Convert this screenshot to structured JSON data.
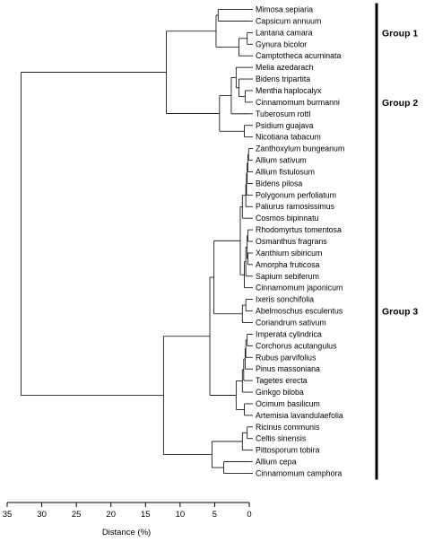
{
  "chart_data": {
    "type": "dendrogram",
    "xlabel": "Distance (%)",
    "x_ticks": [
      35,
      30,
      25,
      20,
      15,
      10,
      5,
      0
    ],
    "xlim": [
      35,
      0
    ],
    "leaves": [
      "Mimosa sepiaria",
      "Capsicum annuum",
      "Lantana camara",
      "Gynura bicolor",
      "Camptotheca acuminata",
      "Melia azedarach",
      "Bidens tripartita",
      "Mentha haplocalyx",
      "Cinnamomum burmanni",
      "Tuberosum rottl",
      "Psidium guajava",
      "Nicotiana tabacum",
      "Zanthoxylum bungeanum",
      "Allium sativum",
      "Allium fistulosum",
      "Bidens pilosa",
      "Polygonum perfoliatum",
      "Paliurus ramosissimus",
      "Cosmos bipinnatu",
      "Rhodomyrtus tomentosa",
      "Osmanthus fragrans",
      "Xanthium sibiricum",
      "Amorpha fruticosa",
      "Sapium sebiferum",
      "Cinnamomum japonicum",
      "Ixeris sonchifolia",
      "Abelmoschus esculentus",
      "Coriandrum sativum",
      "Imperata cylindrica",
      "Corchorus acutangulus",
      "Rubus parvifolius",
      "Pinus massoniana",
      "Tagetes erecta",
      "Ginkgo biloba",
      "Ocimum basilicum",
      "Artemisia lavandulaefolia",
      "Ricinus communis",
      "Celtis sinensis",
      "Pittosporum tobira",
      "Allium cepa",
      "Cinnamomum camphora"
    ],
    "merges": [
      {
        "a": 0,
        "b": 1,
        "height": 4.5
      },
      {
        "a": 2,
        "b": 3,
        "height": 0.3
      },
      {
        "a": 42,
        "b": 4,
        "height": 1.5
      },
      {
        "a": 41,
        "b": 43,
        "height": 4.8
      },
      {
        "a": 7,
        "b": 8,
        "height": 0.6
      },
      {
        "a": 6,
        "b": 45,
        "height": 1.5
      },
      {
        "a": 5,
        "b": 46,
        "height": 1.9
      },
      {
        "a": 10,
        "b": 11,
        "height": 0.7
      },
      {
        "a": 47,
        "b": 9,
        "height": 2.6
      },
      {
        "a": 49,
        "b": 48,
        "height": 4.3
      },
      {
        "a": 44,
        "b": 50,
        "height": 12.0
      },
      {
        "a": 12,
        "b": 13,
        "height": 0.1
      },
      {
        "a": 52,
        "b": 14,
        "height": 0.2
      },
      {
        "a": 53,
        "b": 15,
        "height": 0.3
      },
      {
        "a": 54,
        "b": 16,
        "height": 0.4
      },
      {
        "a": 55,
        "b": 17,
        "height": 0.5
      },
      {
        "a": 56,
        "b": 18,
        "height": 1.0
      },
      {
        "a": 19,
        "b": 20,
        "height": 0.2
      },
      {
        "a": 21,
        "b": 22,
        "height": 0.2
      },
      {
        "a": 58,
        "b": 59,
        "height": 0.3
      },
      {
        "a": 60,
        "b": 23,
        "height": 0.5
      },
      {
        "a": 61,
        "b": 24,
        "height": 0.7
      },
      {
        "a": 57,
        "b": 62,
        "height": 1.3
      },
      {
        "a": 25,
        "b": 26,
        "height": 0.5
      },
      {
        "a": 64,
        "b": 27,
        "height": 1.0
      },
      {
        "a": 63,
        "b": 65,
        "height": 5.1
      },
      {
        "a": 28,
        "b": 29,
        "height": 0.3
      },
      {
        "a": 67,
        "b": 30,
        "height": 0.5
      },
      {
        "a": 68,
        "b": 31,
        "height": 0.6
      },
      {
        "a": 69,
        "b": 32,
        "height": 0.8
      },
      {
        "a": 70,
        "b": 33,
        "height": 1.0
      },
      {
        "a": 34,
        "b": 35,
        "height": 0.7
      },
      {
        "a": 71,
        "b": 72,
        "height": 1.9
      },
      {
        "a": 66,
        "b": 73,
        "height": 5.7
      },
      {
        "a": 36,
        "b": 37,
        "height": 0.3
      },
      {
        "a": 75,
        "b": 38,
        "height": 1.0
      },
      {
        "a": 39,
        "b": 40,
        "height": 3.7
      },
      {
        "a": 76,
        "b": 77,
        "height": 5.4
      },
      {
        "a": 74,
        "b": 78,
        "height": 12.4
      },
      {
        "a": 51,
        "b": 79,
        "height": 33.0
      }
    ],
    "groups": [
      {
        "label": "Group 1",
        "first": 0,
        "last": 4
      },
      {
        "label": "Group 2",
        "first": 5,
        "last": 11
      },
      {
        "label": "Group 3",
        "first": 12,
        "last": 40
      }
    ]
  }
}
